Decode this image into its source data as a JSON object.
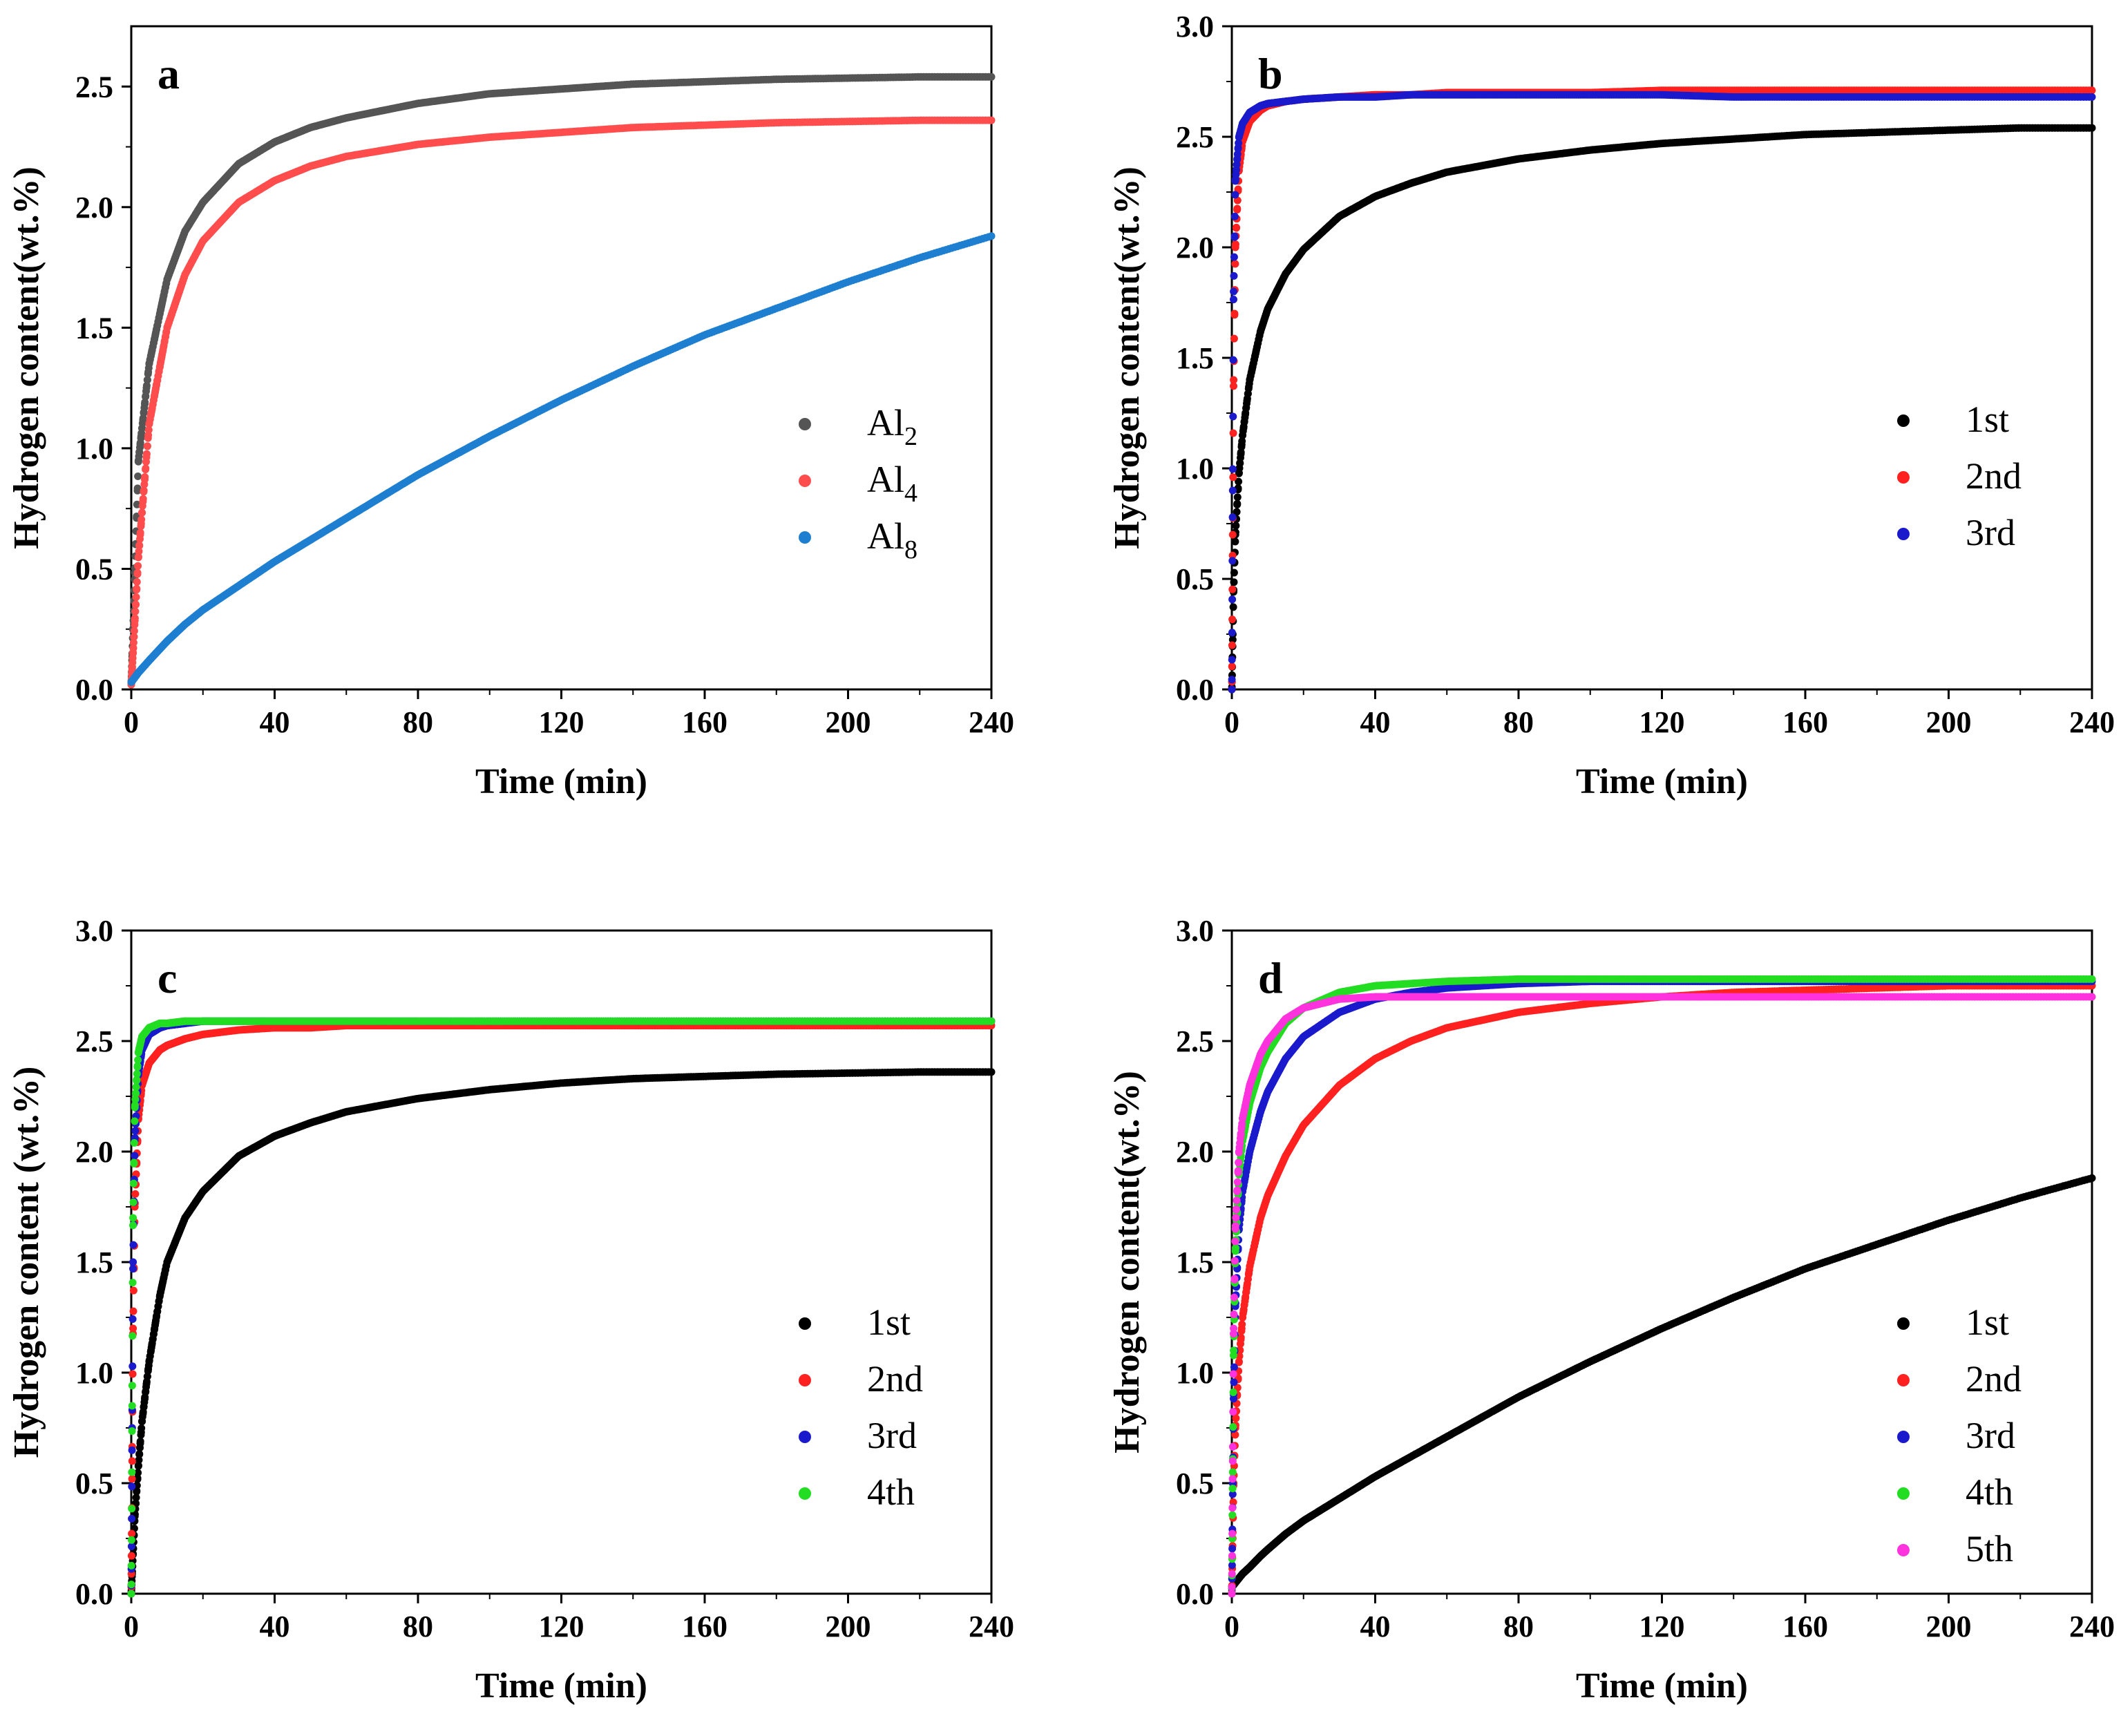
{
  "chart_data": [
    {
      "type": "scatter",
      "panel_label": "a",
      "xlabel": "Time (min)",
      "ylabel": "Hydrogen content(wt.%)",
      "xlim": [
        0,
        240
      ],
      "ylim": [
        0,
        2.75
      ],
      "x_ticks": [
        0,
        40,
        80,
        120,
        160,
        200,
        240
      ],
      "x_tick_labels": [
        "0",
        "40",
        "80",
        "120",
        "160",
        "200",
        "240"
      ],
      "y_ticks": [
        0.0,
        0.5,
        1.0,
        1.5,
        2.0,
        2.5
      ],
      "y_tick_labels": [
        "0.0",
        "0.5",
        "1.0",
        "1.5",
        "2.0",
        "2.5"
      ],
      "legend_position": "right",
      "x": [
        0,
        2,
        5,
        10,
        15,
        20,
        30,
        40,
        50,
        60,
        80,
        100,
        120,
        140,
        160,
        180,
        200,
        220,
        240
      ],
      "series": [
        {
          "name": "Al2",
          "label_main": "Al",
          "label_sub": "2",
          "color": "#555555",
          "values": [
            0.02,
            0.95,
            1.35,
            1.7,
            1.9,
            2.02,
            2.18,
            2.27,
            2.33,
            2.37,
            2.43,
            2.47,
            2.49,
            2.51,
            2.52,
            2.53,
            2.535,
            2.54,
            2.54
          ]
        },
        {
          "name": "Al4",
          "label_main": "Al",
          "label_sub": "4",
          "color": "#ff4d4d",
          "values": [
            0.02,
            0.55,
            1.1,
            1.5,
            1.72,
            1.86,
            2.02,
            2.11,
            2.17,
            2.21,
            2.26,
            2.29,
            2.31,
            2.33,
            2.34,
            2.35,
            2.355,
            2.36,
            2.36
          ]
        },
        {
          "name": "Al8",
          "label_main": "Al",
          "label_sub": "8",
          "color": "#1e7fd1",
          "values": [
            0.03,
            0.07,
            0.12,
            0.2,
            0.27,
            0.33,
            0.43,
            0.53,
            0.62,
            0.71,
            0.89,
            1.05,
            1.2,
            1.34,
            1.47,
            1.58,
            1.69,
            1.79,
            1.88
          ]
        }
      ]
    },
    {
      "type": "scatter",
      "panel_label": "b",
      "xlabel": "Time (min)",
      "ylabel": "Hydrogen  content(wt.%)",
      "xlim": [
        0,
        240
      ],
      "ylim": [
        0,
        3.0
      ],
      "x_ticks": [
        0,
        40,
        80,
        120,
        160,
        200,
        240
      ],
      "x_tick_labels": [
        "0",
        "40",
        "80",
        "120",
        "160",
        "200",
        "240"
      ],
      "y_ticks": [
        0.0,
        0.5,
        1.0,
        1.5,
        2.0,
        2.5,
        3.0
      ],
      "y_tick_labels": [
        "0.0",
        "0.5",
        "1.0",
        "1.5",
        "2.0",
        "2.5",
        "3.0"
      ],
      "legend_position": "right",
      "x": [
        0,
        0.5,
        1,
        2,
        3,
        5,
        8,
        10,
        15,
        20,
        30,
        40,
        50,
        60,
        80,
        100,
        120,
        140,
        160,
        180,
        200,
        220,
        240
      ],
      "series": [
        {
          "name": "1st",
          "label_main": "1st",
          "label_sub": "",
          "color": "#000000",
          "values": [
            0.0,
            0.45,
            0.7,
            0.98,
            1.15,
            1.4,
            1.62,
            1.72,
            1.88,
            1.99,
            2.14,
            2.23,
            2.29,
            2.34,
            2.4,
            2.44,
            2.47,
            2.49,
            2.51,
            2.52,
            2.53,
            2.54,
            2.54
          ]
        },
        {
          "name": "2nd",
          "label_main": "2nd",
          "label_sub": "",
          "color": "#ff2020",
          "values": [
            0.0,
            1.4,
            2.0,
            2.35,
            2.48,
            2.57,
            2.62,
            2.64,
            2.66,
            2.67,
            2.68,
            2.69,
            2.69,
            2.7,
            2.7,
            2.7,
            2.71,
            2.71,
            2.71,
            2.71,
            2.71,
            2.71,
            2.71
          ]
        },
        {
          "name": "3rd",
          "label_main": "3rd",
          "label_sub": "",
          "color": "#1a1acc",
          "values": [
            0.0,
            1.8,
            2.3,
            2.5,
            2.56,
            2.61,
            2.64,
            2.65,
            2.66,
            2.67,
            2.68,
            2.68,
            2.69,
            2.69,
            2.69,
            2.69,
            2.69,
            2.68,
            2.68,
            2.68,
            2.68,
            2.68,
            2.68
          ]
        }
      ]
    },
    {
      "type": "scatter",
      "panel_label": "c",
      "xlabel": "Time (min)",
      "ylabel": "Hydrogen content (wt.%)",
      "xlim": [
        0,
        240
      ],
      "ylim": [
        0,
        3.0
      ],
      "x_ticks": [
        0,
        40,
        80,
        120,
        160,
        200,
        240
      ],
      "x_tick_labels": [
        "0",
        "40",
        "80",
        "120",
        "160",
        "200",
        "240"
      ],
      "y_ticks": [
        0.0,
        0.5,
        1.0,
        1.5,
        2.0,
        2.5,
        3.0
      ],
      "y_tick_labels": [
        "0.0",
        "0.5",
        "1.0",
        "1.5",
        "2.0",
        "2.5",
        "3.0"
      ],
      "legend_position": "right",
      "x": [
        0,
        0.5,
        1,
        2,
        3,
        5,
        8,
        10,
        15,
        20,
        30,
        40,
        50,
        60,
        80,
        100,
        120,
        140,
        160,
        180,
        200,
        220,
        240
      ],
      "series": [
        {
          "name": "1st",
          "label_main": "1st",
          "label_sub": "",
          "color": "#000000",
          "values": [
            0.0,
            0.18,
            0.35,
            0.58,
            0.78,
            1.05,
            1.35,
            1.5,
            1.7,
            1.82,
            1.98,
            2.07,
            2.13,
            2.18,
            2.24,
            2.28,
            2.31,
            2.33,
            2.34,
            2.35,
            2.355,
            2.36,
            2.36
          ]
        },
        {
          "name": "2nd",
          "label_main": "2nd",
          "label_sub": "",
          "color": "#ff2020",
          "values": [
            0.0,
            1.2,
            1.75,
            2.15,
            2.3,
            2.4,
            2.46,
            2.48,
            2.51,
            2.53,
            2.55,
            2.56,
            2.56,
            2.57,
            2.57,
            2.57,
            2.57,
            2.57,
            2.57,
            2.57,
            2.57,
            2.57,
            2.57
          ]
        },
        {
          "name": "3rd",
          "label_main": "3rd",
          "label_sub": "",
          "color": "#1a1acc",
          "values": [
            0.0,
            1.5,
            2.05,
            2.35,
            2.46,
            2.53,
            2.56,
            2.57,
            2.58,
            2.59,
            2.59,
            2.59,
            2.59,
            2.59,
            2.59,
            2.59,
            2.59,
            2.59,
            2.59,
            2.59,
            2.59,
            2.59,
            2.59
          ]
        },
        {
          "name": "4th",
          "label_main": "4th",
          "label_sub": "",
          "color": "#22dd22",
          "values": [
            0.0,
            1.7,
            2.2,
            2.45,
            2.52,
            2.56,
            2.58,
            2.58,
            2.59,
            2.59,
            2.59,
            2.59,
            2.59,
            2.59,
            2.59,
            2.59,
            2.59,
            2.59,
            2.59,
            2.59,
            2.59,
            2.59,
            2.59
          ]
        }
      ]
    },
    {
      "type": "scatter",
      "panel_label": "d",
      "xlabel": "Time (min)",
      "ylabel": "Hydrogen content(wt.%)",
      "xlim": [
        0,
        240
      ],
      "ylim": [
        0,
        3.0
      ],
      "x_ticks": [
        0,
        40,
        80,
        120,
        160,
        200,
        240
      ],
      "x_tick_labels": [
        "0",
        "40",
        "80",
        "120",
        "160",
        "200",
        "240"
      ],
      "y_ticks": [
        0.0,
        0.5,
        1.0,
        1.5,
        2.0,
        2.5,
        3.0
      ],
      "y_tick_labels": [
        "0.0",
        "0.5",
        "1.0",
        "1.5",
        "2.0",
        "2.5",
        "3.0"
      ],
      "legend_position": "right",
      "x": [
        0,
        0.5,
        1,
        2,
        3,
        5,
        8,
        10,
        15,
        20,
        30,
        40,
        50,
        60,
        80,
        100,
        120,
        140,
        160,
        180,
        200,
        220,
        240
      ],
      "series": [
        {
          "name": "1st",
          "label_main": "1st",
          "label_sub": "",
          "color": "#000000",
          "values": [
            0.03,
            0.04,
            0.05,
            0.07,
            0.09,
            0.12,
            0.17,
            0.2,
            0.27,
            0.33,
            0.43,
            0.53,
            0.62,
            0.71,
            0.89,
            1.05,
            1.2,
            1.34,
            1.47,
            1.58,
            1.69,
            1.79,
            1.88
          ]
        },
        {
          "name": "2nd",
          "label_main": "2nd",
          "label_sub": "",
          "color": "#ff2020",
          "values": [
            0.0,
            0.5,
            0.75,
            1.05,
            1.25,
            1.48,
            1.7,
            1.8,
            1.98,
            2.12,
            2.3,
            2.42,
            2.5,
            2.56,
            2.63,
            2.67,
            2.7,
            2.72,
            2.73,
            2.74,
            2.75,
            2.75,
            2.75
          ]
        },
        {
          "name": "3rd",
          "label_main": "3rd",
          "label_sub": "",
          "color": "#1a1acc",
          "values": [
            0.0,
            0.9,
            1.3,
            1.65,
            1.82,
            2.0,
            2.18,
            2.27,
            2.42,
            2.52,
            2.63,
            2.69,
            2.72,
            2.74,
            2.76,
            2.77,
            2.77,
            2.77,
            2.77,
            2.77,
            2.77,
            2.77,
            2.77
          ]
        },
        {
          "name": "4th",
          "label_main": "4th",
          "label_sub": "",
          "color": "#22dd22",
          "values": [
            0.0,
            1.1,
            1.55,
            1.9,
            2.05,
            2.22,
            2.38,
            2.45,
            2.58,
            2.65,
            2.72,
            2.75,
            2.76,
            2.77,
            2.78,
            2.78,
            2.78,
            2.78,
            2.78,
            2.78,
            2.78,
            2.78,
            2.78
          ]
        },
        {
          "name": "5th",
          "label_main": "5th",
          "label_sub": "",
          "color": "#ff33dd",
          "values": [
            0.0,
            1.2,
            1.65,
            2.0,
            2.15,
            2.3,
            2.44,
            2.5,
            2.6,
            2.65,
            2.69,
            2.7,
            2.7,
            2.7,
            2.7,
            2.7,
            2.7,
            2.7,
            2.7,
            2.7,
            2.7,
            2.7,
            2.7
          ]
        }
      ]
    }
  ]
}
